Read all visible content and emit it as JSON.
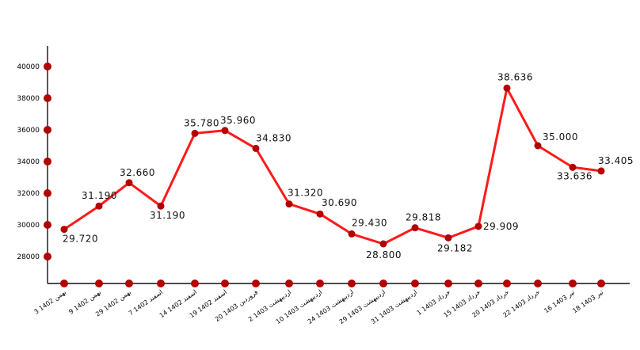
{
  "chart_data": {
    "type": "line",
    "title": "",
    "xlabel": "",
    "ylabel": "",
    "ylim": [
      26000,
      41000
    ],
    "yticks": [
      "40000",
      "38000",
      "36000",
      "34000",
      "32000",
      "30000",
      "28000"
    ],
    "line_color": "#ff1a1a",
    "marker_color": "#b30000",
    "categories": [
      "3 بهمن 1402",
      "9 بهمن 1402",
      "29 بهمن 1402",
      "7 اسفند 1402",
      "14 اسفند 1402",
      "19 اسفند 1402",
      "20 فروردین 1403",
      "2 اردیبهشت 1403",
      "10 اردیبهشت 1403",
      "24 اردیبهشت 1403",
      "29 اردیبهشت 1403",
      "31 اردیبهشت 1403",
      "1 خرداد 1403",
      "15 خرداد 1403",
      "20 خرداد 1403",
      "22 خرداد 1403",
      "16 تیر 1403",
      "18 تیر 1403"
    ],
    "values": [
      29720,
      31190,
      32660,
      31190,
      35780,
      35960,
      34830,
      31320,
      30690,
      29430,
      28800,
      29818,
      29182,
      29909,
      38636,
      35000,
      33636,
      33405
    ],
    "labels": [
      "29.720",
      "31.190",
      "32.660",
      "31.190",
      "35.780",
      "35.960",
      "34.830",
      "31.320",
      "30.690",
      "29.430",
      "28.800",
      "29.818",
      "29.182",
      "29.909",
      "38.636",
      "35.000",
      "33.636",
      "33.405"
    ]
  }
}
